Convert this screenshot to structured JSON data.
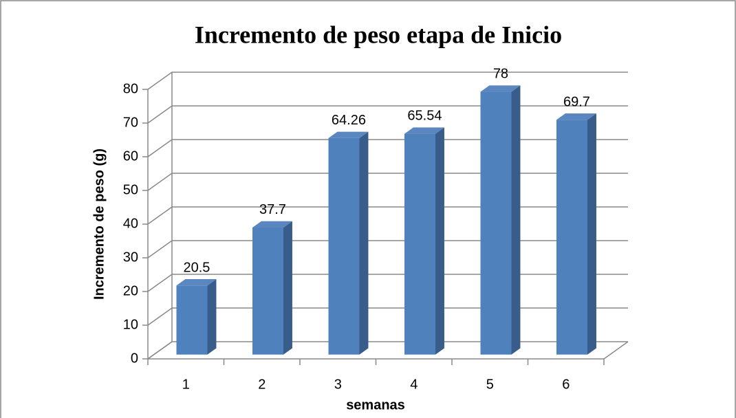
{
  "chart_data": {
    "type": "bar3d",
    "title": "Incremento de peso etapa de Inicio",
    "x_label": "semanas",
    "y_label": "Incremento de peso (g)",
    "categories": [
      "1",
      "2",
      "3",
      "4",
      "5",
      "6"
    ],
    "values": [
      20.5,
      37.7,
      64.26,
      65.54,
      78,
      69.7
    ],
    "color": "#4f81bd",
    "ylim": [
      0,
      80
    ],
    "yticks": [
      0,
      10,
      20,
      30,
      40,
      50,
      60,
      70,
      80
    ],
    "grid": true
  }
}
